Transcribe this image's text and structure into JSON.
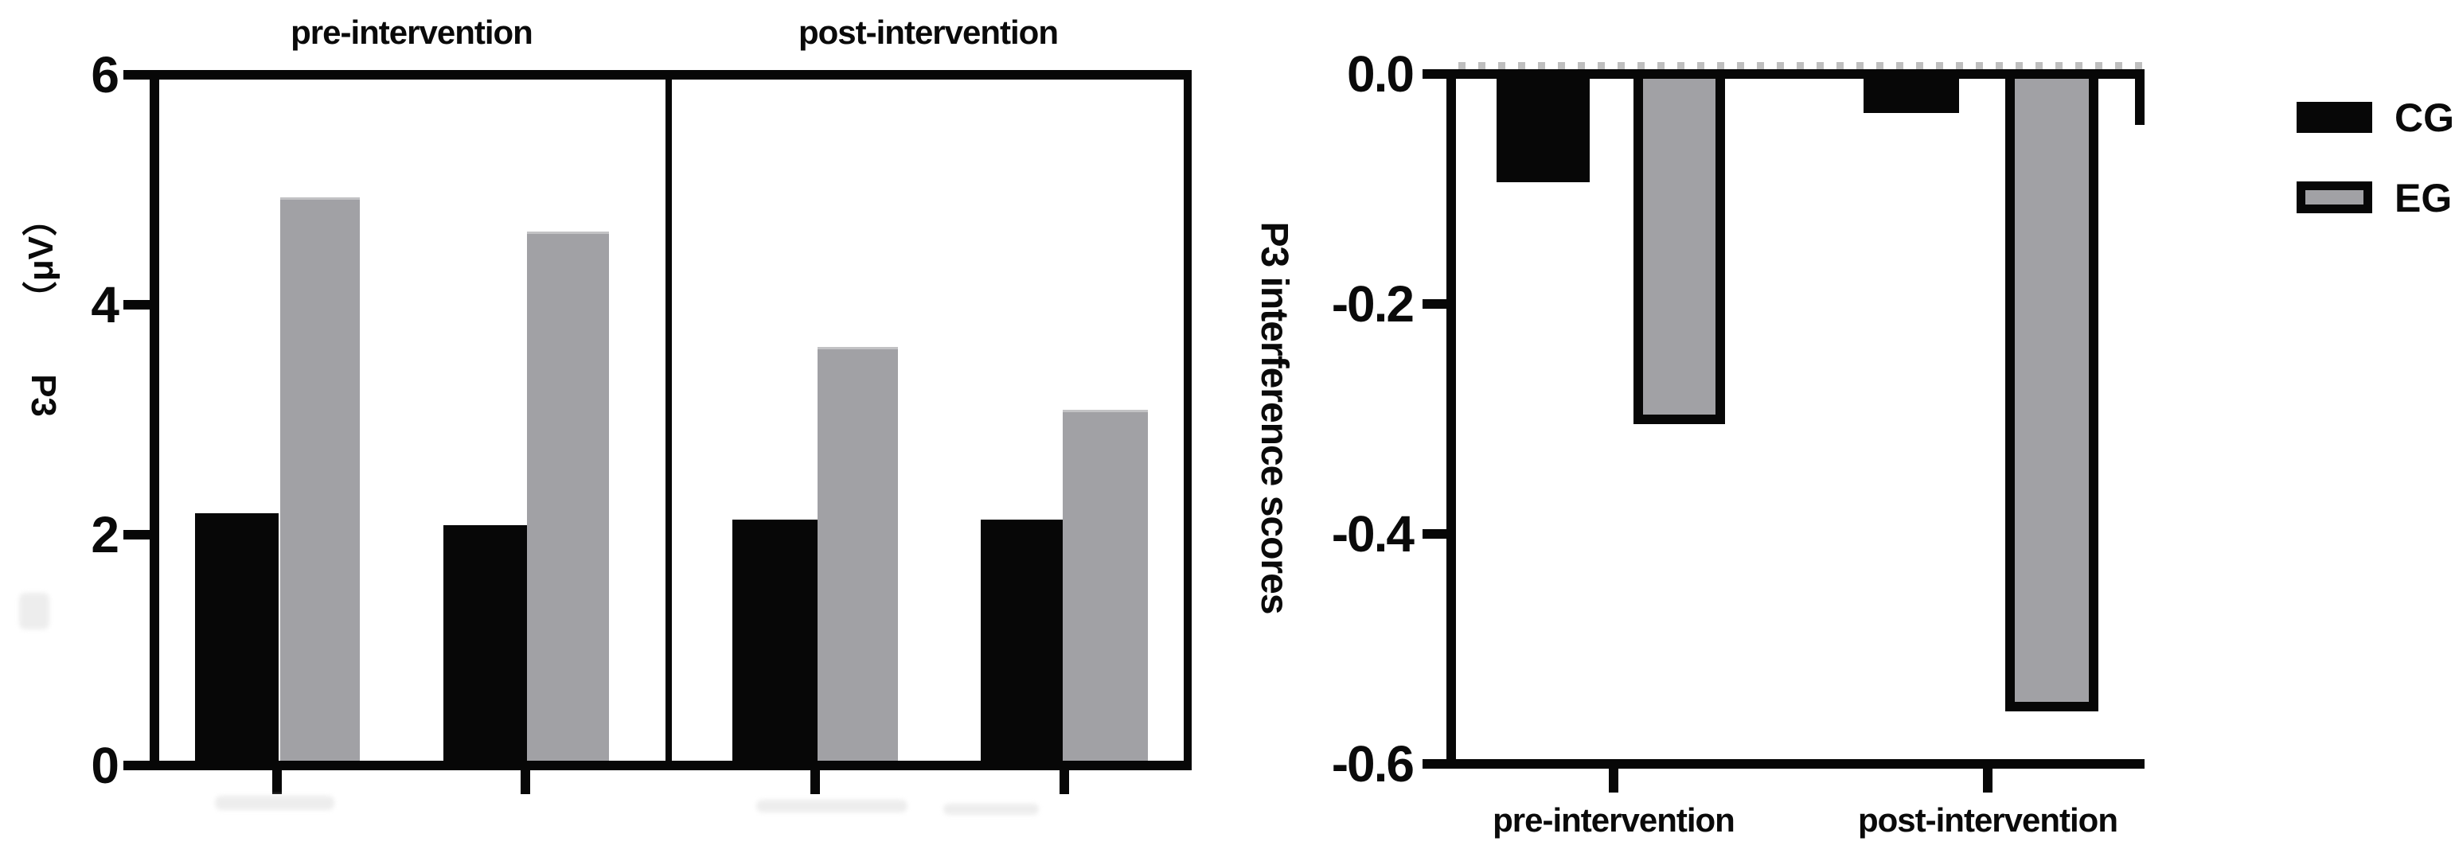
{
  "page": {
    "background": "#ffffff"
  },
  "colors": {
    "bar_black": "#070707",
    "bar_gray": "#a1a1a5",
    "minor_tick_gray": "#bfbfbf",
    "text": "#0a0a0a"
  },
  "legend": {
    "items": [
      {
        "label": "CG",
        "swatch": "solid-black"
      },
      {
        "label": "EG",
        "swatch": "gray-with-black-outline"
      }
    ]
  },
  "charts": {
    "amplitude": {
      "panel_titles": [
        "pre-intervention",
        "post-intervention"
      ],
      "ylabel_main": "P3",
      "ylabel_unit": "（μV）",
      "ytick_labels": [
        "6",
        "4",
        "2",
        "0"
      ]
    },
    "interference": {
      "ylabel": "P3 interference scores",
      "ytick_labels": [
        "0.0",
        "-0.2",
        "-0.4",
        "-0.6"
      ],
      "xtick_labels": [
        "pre-intervention",
        "post-intervention"
      ]
    }
  },
  "chart_data": [
    {
      "id": "p3-amplitude",
      "type": "bar",
      "title": "",
      "ylabel": "P3（μV）",
      "ylim": [
        0,
        6
      ],
      "yticks": [
        0,
        2,
        4,
        6
      ],
      "grid": false,
      "series_names": [
        "CG",
        "EG"
      ],
      "panels": [
        {
          "title": "pre-intervention",
          "groups": [
            {
              "series": {
                "CG": 2.15,
                "EG": 4.9
              }
            },
            {
              "series": {
                "CG": 2.05,
                "EG": 4.6
              }
            }
          ]
        },
        {
          "title": "post-intervention",
          "groups": [
            {
              "series": {
                "CG": 2.1,
                "EG": 3.6
              }
            },
            {
              "series": {
                "CG": 2.1,
                "EG": 3.05
              }
            }
          ]
        }
      ]
    },
    {
      "id": "p3-interference-scores",
      "type": "bar",
      "title": "",
      "ylabel": "P3 interference scores",
      "ylim": [
        -0.6,
        0
      ],
      "yticks": [
        0.0,
        -0.2,
        -0.4,
        -0.6
      ],
      "grid": false,
      "legend_position": "top-right",
      "categories": [
        "pre-intervention",
        "post-intervention"
      ],
      "series": [
        {
          "name": "CG",
          "values": [
            -0.09,
            -0.03
          ]
        },
        {
          "name": "EG",
          "values": [
            -0.3,
            -0.55
          ]
        }
      ]
    }
  ]
}
